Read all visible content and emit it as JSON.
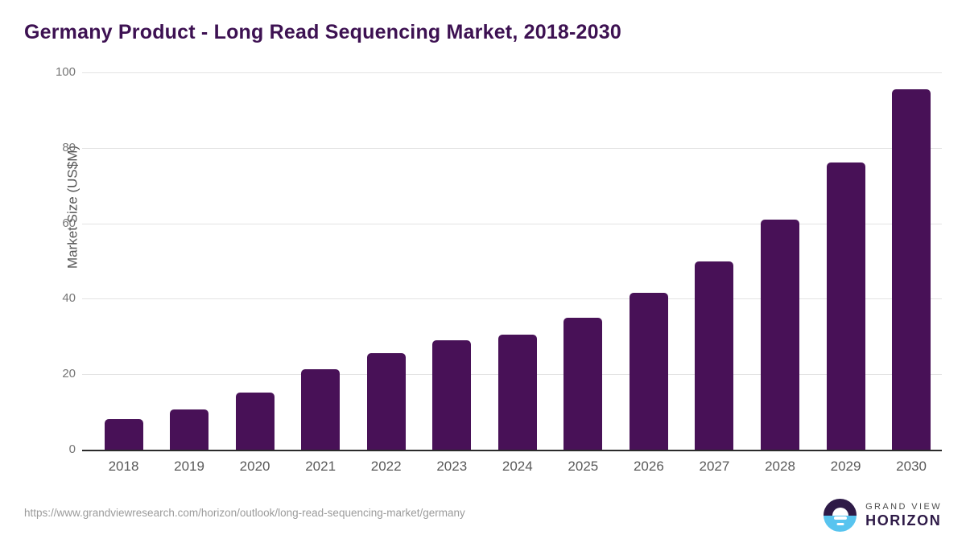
{
  "title": "Germany Product - Long Read Sequencing Market, 2018-2030",
  "source_url": "https://www.grandviewresearch.com/horizon/outlook/long-read-sequencing-market/germany",
  "logo": {
    "line1": "GRAND VIEW",
    "line2": "HORIZON",
    "icon": "horizon-sun-over-water-icon"
  },
  "colors": {
    "bar": "#481157",
    "title": "#3d1152",
    "gridline": "#e3e3e3",
    "axis_line": "#2b2b2b",
    "y_tick_text": "#767676",
    "x_tick_text": "#595959",
    "axis_label_text": "#555555",
    "url_text": "#9b9b9b",
    "logo_dark": "#2e1a47",
    "logo_blue": "#58c4ef"
  },
  "chart_data": {
    "type": "bar",
    "title": "Germany Product - Long Read Sequencing Market, 2018-2030",
    "categories": [
      "2018",
      "2019",
      "2020",
      "2021",
      "2022",
      "2023",
      "2024",
      "2025",
      "2026",
      "2027",
      "2028",
      "2029",
      "2030"
    ],
    "values": [
      8.2,
      10.7,
      15.2,
      21.3,
      25.6,
      29.0,
      30.4,
      35.0,
      41.6,
      50.0,
      61.0,
      76.1,
      95.5
    ],
    "xlabel": "",
    "ylabel": "Market Size (US$M)",
    "ylim": [
      0,
      100
    ],
    "yticks": [
      0,
      20,
      40,
      60,
      80,
      100
    ],
    "grid": true,
    "legend": false,
    "bar_color": "#481157"
  }
}
